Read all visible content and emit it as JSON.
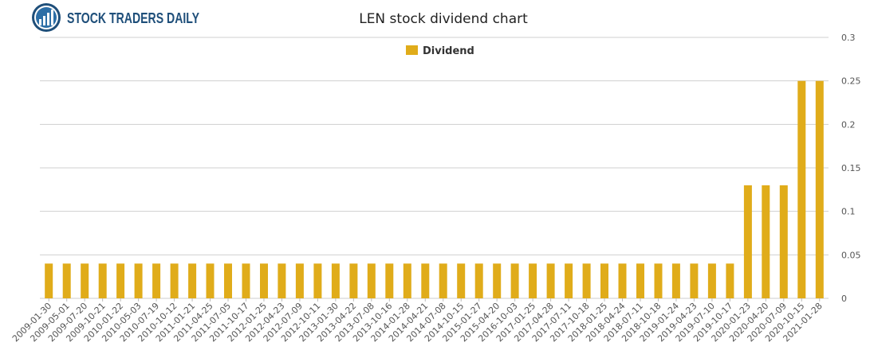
{
  "brand": {
    "name": "STOCK TRADERS DAILY",
    "color": "#1f4f7a"
  },
  "chart_data": {
    "type": "bar",
    "title": "LEN stock dividend chart",
    "xlabel": "",
    "ylabel": "",
    "ylim": [
      0,
      0.3
    ],
    "yticks": [
      "0",
      "0.05",
      "0.1",
      "0.15",
      "0.2",
      "0.25",
      "0.3"
    ],
    "grid": true,
    "legend_position": "top-center",
    "bar_color": "#e0ac1a",
    "categories": [
      "2009-01-30",
      "2009-05-01",
      "2009-07-20",
      "2009-10-21",
      "2010-01-22",
      "2010-05-03",
      "2010-07-19",
      "2010-10-12",
      "2011-01-21",
      "2011-04-25",
      "2011-07-05",
      "2011-10-17",
      "2012-01-25",
      "2012-04-23",
      "2012-07-09",
      "2012-10-11",
      "2013-01-30",
      "2013-04-22",
      "2013-07-08",
      "2013-10-16",
      "2014-01-28",
      "2014-04-21",
      "2014-07-08",
      "2014-10-15",
      "2015-01-27",
      "2015-04-20",
      "2016-10-03",
      "2017-01-25",
      "2017-04-28",
      "2017-07-11",
      "2017-10-18",
      "2018-01-25",
      "2018-04-24",
      "2018-07-11",
      "2018-10-18",
      "2019-01-24",
      "2019-04-23",
      "2019-07-10",
      "2019-10-17",
      "2020-01-23",
      "2020-04-20",
      "2020-07-09",
      "2020-10-15",
      "2021-01-28"
    ],
    "series": [
      {
        "name": "Dividend",
        "values": [
          0.04,
          0.04,
          0.04,
          0.04,
          0.04,
          0.04,
          0.04,
          0.04,
          0.04,
          0.04,
          0.04,
          0.04,
          0.04,
          0.04,
          0.04,
          0.04,
          0.04,
          0.04,
          0.04,
          0.04,
          0.04,
          0.04,
          0.04,
          0.04,
          0.04,
          0.04,
          0.04,
          0.04,
          0.04,
          0.04,
          0.04,
          0.04,
          0.04,
          0.04,
          0.04,
          0.04,
          0.04,
          0.04,
          0.04,
          0.13,
          0.13,
          0.13,
          0.25,
          0.25
        ]
      }
    ]
  }
}
